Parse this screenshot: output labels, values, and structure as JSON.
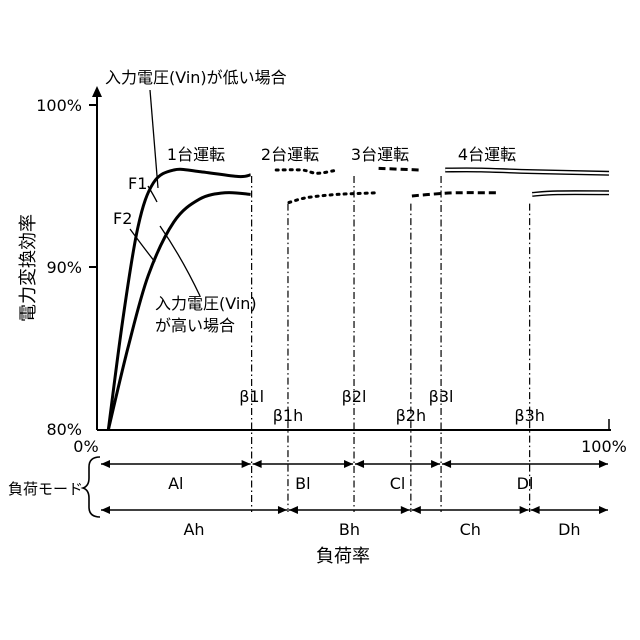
{
  "chart_data": {
    "type": "line",
    "ylabel": "電力変換効率",
    "xlabel": "負荷率",
    "y_ticks": [
      "100%",
      "90%",
      "80%"
    ],
    "x_ticks": [
      "0%",
      "100%"
    ],
    "xlim": [
      0,
      100
    ],
    "ylim": [
      80,
      100
    ],
    "series": [
      {
        "name": "F1",
        "points": [
          [
            2.2,
            80.0
          ],
          [
            5,
            86.7
          ],
          [
            8,
            92.5
          ],
          [
            11,
            95.2
          ],
          [
            15,
            96.0
          ],
          [
            20,
            95.9
          ],
          [
            27.6,
            95.6
          ],
          [
            30,
            95.7
          ],
          [
            35,
            96.0
          ],
          [
            40,
            96.0
          ],
          [
            43,
            95.8
          ],
          [
            47,
            96.0
          ],
          [
            55,
            96.1
          ],
          [
            63,
            96.0
          ],
          [
            68,
            96.0
          ],
          [
            75,
            96.0
          ],
          [
            85,
            95.9
          ],
          [
            100,
            95.8
          ]
        ]
      },
      {
        "name": "F2",
        "points": [
          [
            2.2,
            80.0
          ],
          [
            6,
            85.0
          ],
          [
            10,
            89.5
          ],
          [
            15,
            92.8
          ],
          [
            20,
            94.2
          ],
          [
            25,
            94.6
          ],
          [
            30,
            94.5
          ],
          [
            37.5,
            94.0
          ],
          [
            41,
            94.3
          ],
          [
            47,
            94.5
          ],
          [
            55,
            94.6
          ],
          [
            61.5,
            94.4
          ],
          [
            65,
            94.5
          ],
          [
            70,
            94.6
          ],
          [
            78,
            94.6
          ],
          [
            85,
            94.5
          ],
          [
            90,
            94.6
          ],
          [
            100,
            94.6
          ]
        ]
      }
    ],
    "beta_l": [
      {
        "label": "β1l",
        "x": 30.2
      },
      {
        "label": "β2l",
        "x": 50.2
      },
      {
        "label": "β3l",
        "x": 67.2
      }
    ],
    "beta_h": [
      {
        "label": "β1h",
        "x": 37.3
      },
      {
        "label": "β2h",
        "x": 61.3
      },
      {
        "label": "β3h",
        "x": 84.5
      }
    ],
    "operation_labels": [
      "1台運転",
      "2台運転",
      "3台運転",
      "4台運転"
    ],
    "annotations": {
      "low_vin": "入力電圧(Vin)が低い場合",
      "high_vin_line1": "入力電圧(Vin)",
      "high_vin_line2": "が高い場合",
      "f1": "F1",
      "f2": "F2"
    }
  },
  "load_modes": {
    "label": "負荷モード",
    "low_row": [
      "Al",
      "Bl",
      "Cl",
      "Dl"
    ],
    "high_row": [
      "Ah",
      "Bh",
      "Ch",
      "Dh"
    ]
  }
}
